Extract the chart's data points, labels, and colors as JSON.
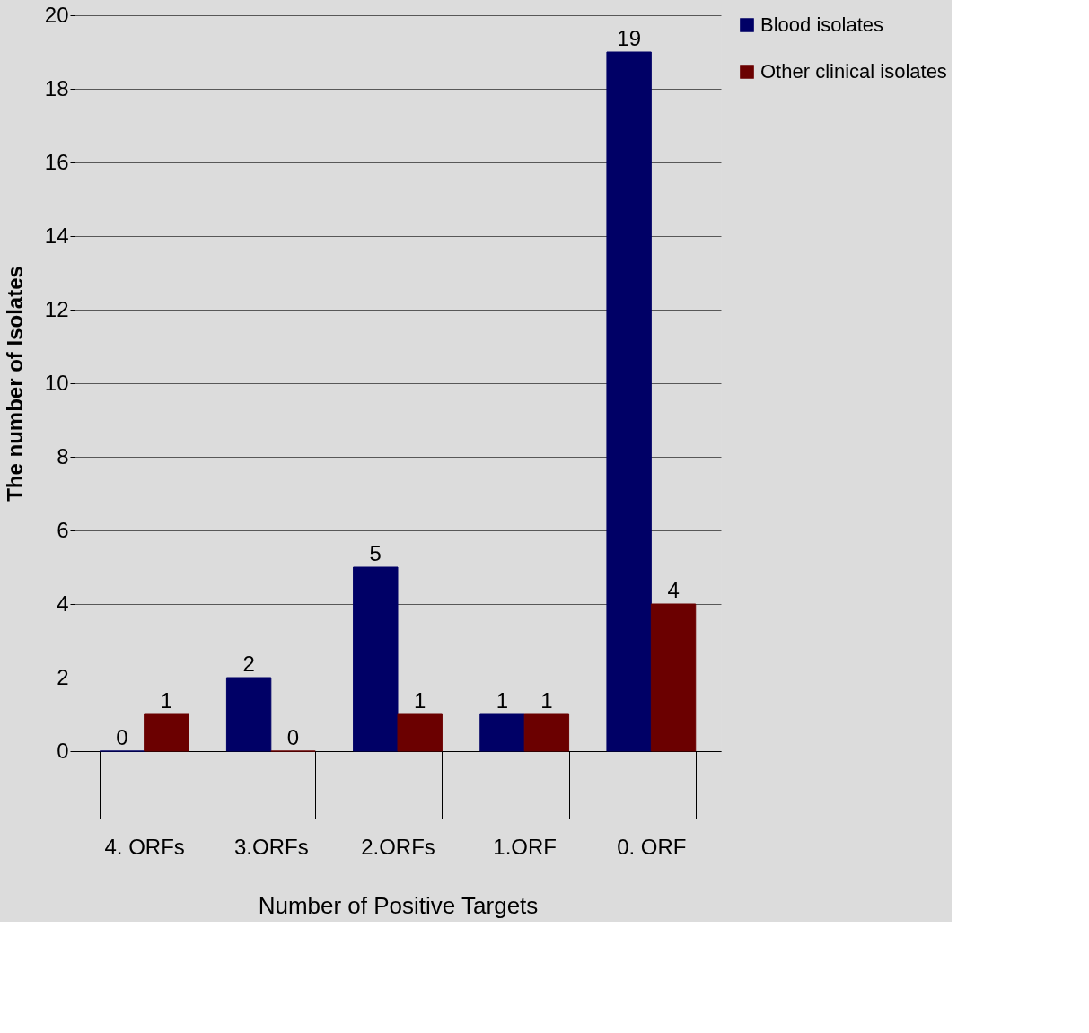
{
  "chart_data": {
    "type": "bar",
    "xlabel": "Number of Positive Targets",
    "ylabel": "The number of Isolates",
    "categories": [
      "4. ORFs",
      "3.ORFs",
      "2.ORFs",
      "1.ORF",
      "0. ORF"
    ],
    "series": [
      {
        "name": "Blood isolates",
        "color": "#000066",
        "values": [
          0,
          2,
          5,
          1,
          19
        ]
      },
      {
        "name": "Other clinical isolates",
        "color": "#6b0000",
        "values": [
          1,
          0,
          1,
          1,
          4
        ]
      }
    ],
    "ylim": [
      0,
      20
    ],
    "yticks": [
      0,
      2,
      4,
      6,
      8,
      10,
      12,
      14,
      16,
      18,
      20
    ],
    "grid": "y",
    "legend": "right",
    "data_labels": true
  }
}
